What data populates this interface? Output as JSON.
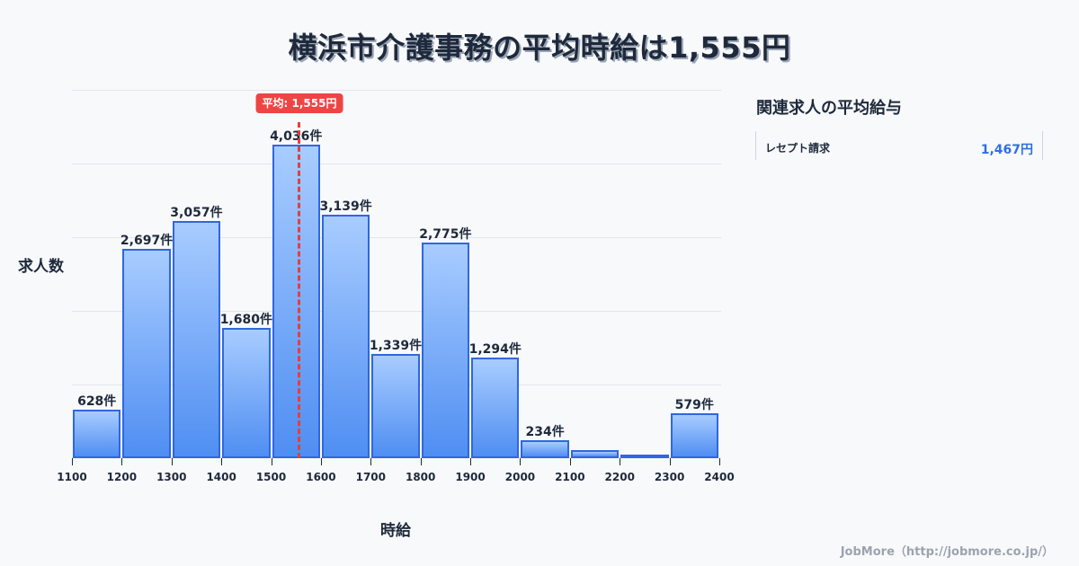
{
  "title": "横浜市介護事務の平均時給は1,555円",
  "chart_data": {
    "type": "bar",
    "title": "横浜市介護事務の平均時給は1,555円",
    "xlabel": "時給",
    "ylabel": "求人数",
    "bin_edges": [
      1100,
      1200,
      1300,
      1400,
      1500,
      1600,
      1700,
      1800,
      1900,
      2000,
      2100,
      2200,
      2300,
      2400
    ],
    "categories": [
      "1100-1200",
      "1200-1300",
      "1300-1400",
      "1400-1500",
      "1500-1600",
      "1600-1700",
      "1700-1800",
      "1800-1900",
      "1900-2000",
      "2000-2100",
      "2100-2200",
      "2200-2300",
      "2300-2400"
    ],
    "values": [
      628,
      2697,
      3057,
      1680,
      4036,
      3139,
      1339,
      2775,
      1294,
      234,
      100,
      40,
      579
    ],
    "labels": [
      "628件",
      "2,697件",
      "3,057件",
      "1,680件",
      "4,036件",
      "3,139件",
      "1,339件",
      "2,775件",
      "1,294件",
      "234件",
      "",
      "",
      "579件"
    ],
    "xlim": [
      1100,
      2400
    ],
    "grid": true,
    "average": {
      "value": 1555,
      "label": "平均: 1,555円"
    },
    "colors": {
      "bar_fill_top": "#a8ccff",
      "bar_fill_bottom": "#4f8ef2",
      "bar_border": "#2f67e0",
      "average_line": "#e53e3e"
    }
  },
  "axis": {
    "ylabel": "求人数",
    "xlabel": "時給",
    "ticks": [
      "1100",
      "1200",
      "1300",
      "1400",
      "1500",
      "1600",
      "1700",
      "1800",
      "1900",
      "2000",
      "2100",
      "2200",
      "2300",
      "2400"
    ]
  },
  "average_badge": "平均: 1,555円",
  "sidebar": {
    "title": "関連求人の平均給与",
    "items": [
      {
        "label": "レセプト請求",
        "value": "1,467円"
      }
    ]
  },
  "footer": "JobMore（http://jobmore.co.jp/）"
}
